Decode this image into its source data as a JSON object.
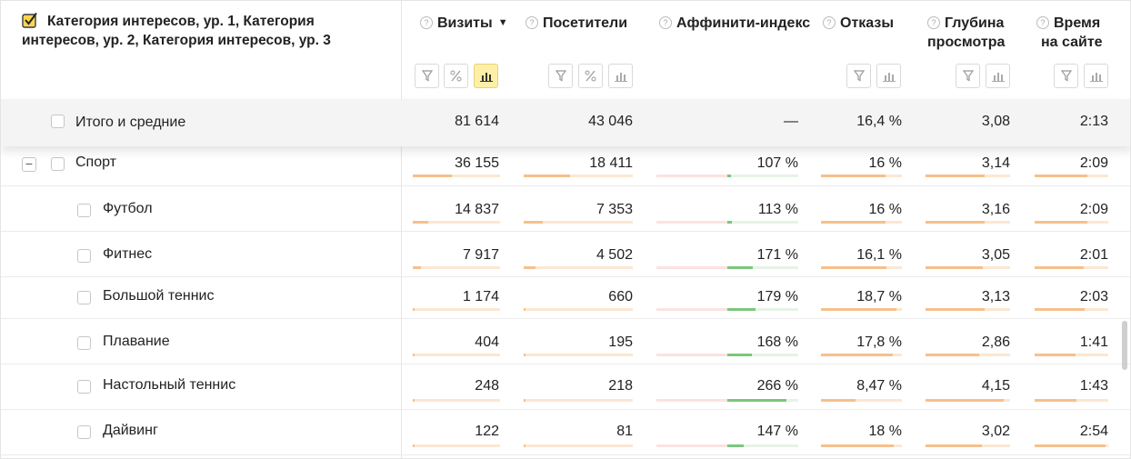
{
  "dimension_header": {
    "checked": true,
    "title": "Категория интересов, ур. 1, Категория интересов, ур. 2, Категория интересов, ур. 3"
  },
  "columns": [
    {
      "key": "visits",
      "title_1": "Визиты",
      "title_2": "",
      "sort": "▼"
    },
    {
      "key": "visitors",
      "title_1": "Посетители",
      "title_2": ""
    },
    {
      "key": "affinity",
      "title_1": "Аффинити-индекс",
      "title_2": ""
    },
    {
      "key": "bounce",
      "title_1": "Отказы",
      "title_2": ""
    },
    {
      "key": "depth",
      "title_1": "Глубина",
      "title_2": "просмотра"
    },
    {
      "key": "time",
      "title_1": "Время",
      "title_2": "на сайте"
    }
  ],
  "help_glyph": "?",
  "total_row": {
    "label": "Итого и средние",
    "visits": "81 614",
    "visitors": "43 046",
    "affinity": "—",
    "bounce": "16,4 %",
    "depth": "3,08",
    "time": "2:13"
  },
  "group_toggle": "−",
  "rows": [
    {
      "label": "Спорт",
      "level": 1,
      "visits": "36 155",
      "visitors": "18 411",
      "affinity": "107 %",
      "bounce": "16 %",
      "depth": "3,14",
      "time": "2:09",
      "visits_share": 0.443,
      "visitors_share": 0.428,
      "affinity_value": 107,
      "bounce_value": 16,
      "depth_value": 3.14,
      "time_value": 129
    },
    {
      "label": "Футбол",
      "level": 2,
      "visits": "14 837",
      "visitors": "7 353",
      "affinity": "113 %",
      "bounce": "16 %",
      "depth": "3,16",
      "time": "2:09",
      "visits_share": 0.182,
      "visitors_share": 0.171,
      "affinity_value": 113,
      "bounce_value": 16,
      "depth_value": 3.16,
      "time_value": 129
    },
    {
      "label": "Фитнес",
      "level": 2,
      "visits": "7 917",
      "visitors": "4 502",
      "affinity": "171 %",
      "bounce": "16,1 %",
      "depth": "3,05",
      "time": "2:01",
      "visits_share": 0.097,
      "visitors_share": 0.105,
      "affinity_value": 171,
      "bounce_value": 16.1,
      "depth_value": 3.05,
      "time_value": 121
    },
    {
      "label": "Большой теннис",
      "level": 2,
      "visits": "1 174",
      "visitors": "660",
      "affinity": "179 %",
      "bounce": "18,7 %",
      "depth": "3,13",
      "time": "2:03",
      "visits_share": 0.014,
      "visitors_share": 0.015,
      "affinity_value": 179,
      "bounce_value": 18.7,
      "depth_value": 3.13,
      "time_value": 123
    },
    {
      "label": "Плавание",
      "level": 2,
      "visits": "404",
      "visitors": "195",
      "affinity": "168 %",
      "bounce": "17,8 %",
      "depth": "2,86",
      "time": "1:41",
      "visits_share": 0.005,
      "visitors_share": 0.005,
      "affinity_value": 168,
      "bounce_value": 17.8,
      "depth_value": 2.86,
      "time_value": 101
    },
    {
      "label": "Настольный теннис",
      "level": 2,
      "visits": "248",
      "visitors": "218",
      "affinity": "266 %",
      "bounce": "8,47 %",
      "depth": "4,15",
      "time": "1:43",
      "visits_share": 0.003,
      "visitors_share": 0.005,
      "affinity_value": 266,
      "bounce_value": 8.47,
      "depth_value": 4.15,
      "time_value": 103
    },
    {
      "label": "Дайвинг",
      "level": 2,
      "visits": "122",
      "visitors": "81",
      "affinity": "147 %",
      "bounce": "18 %",
      "depth": "3,02",
      "time": "2:54",
      "visits_share": 0.0015,
      "visitors_share": 0.0019,
      "affinity_value": 147,
      "bounce_value": 18,
      "depth_value": 3.02,
      "time_value": 174
    }
  ],
  "colors": {
    "bar_fill": "#f6c08b",
    "bar_track": "#fbe7d2",
    "affinity_positive": "#7bc77b",
    "toolbar_active": "#fdefa6"
  },
  "icons": {
    "filter": "filter-icon",
    "percent": "percent-icon",
    "chart": "bar-chart-icon",
    "help": "question-icon"
  }
}
